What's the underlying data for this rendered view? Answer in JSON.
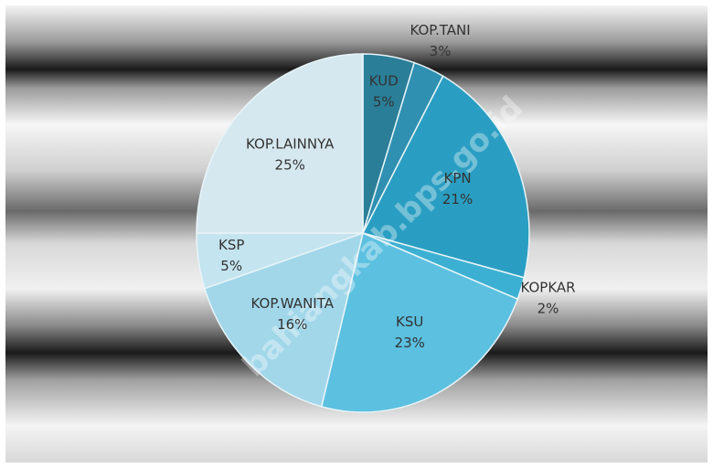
{
  "chart_data": {
    "type": "pie",
    "categories": [
      "KUD",
      "KOP.TANI",
      "KPN",
      "KOPKAR",
      "KSU",
      "KOP.WANITA",
      "KSP",
      "KOP.LAINNYA"
    ],
    "values": [
      5,
      3,
      21,
      2,
      23,
      16,
      5,
      25
    ],
    "value_labels": [
      "5%",
      "3%",
      "21%",
      "2%",
      "23%",
      "16%",
      "5%",
      "25%"
    ],
    "colors": [
      "#2a7e98",
      "#2f90b1",
      "#2a9ec2",
      "#3cb0d2",
      "#5cc0e0",
      "#a2d7ea",
      "#c4e4ef",
      "#d6e8ef"
    ],
    "watermark": "bahiangkab.bps.go.id"
  }
}
